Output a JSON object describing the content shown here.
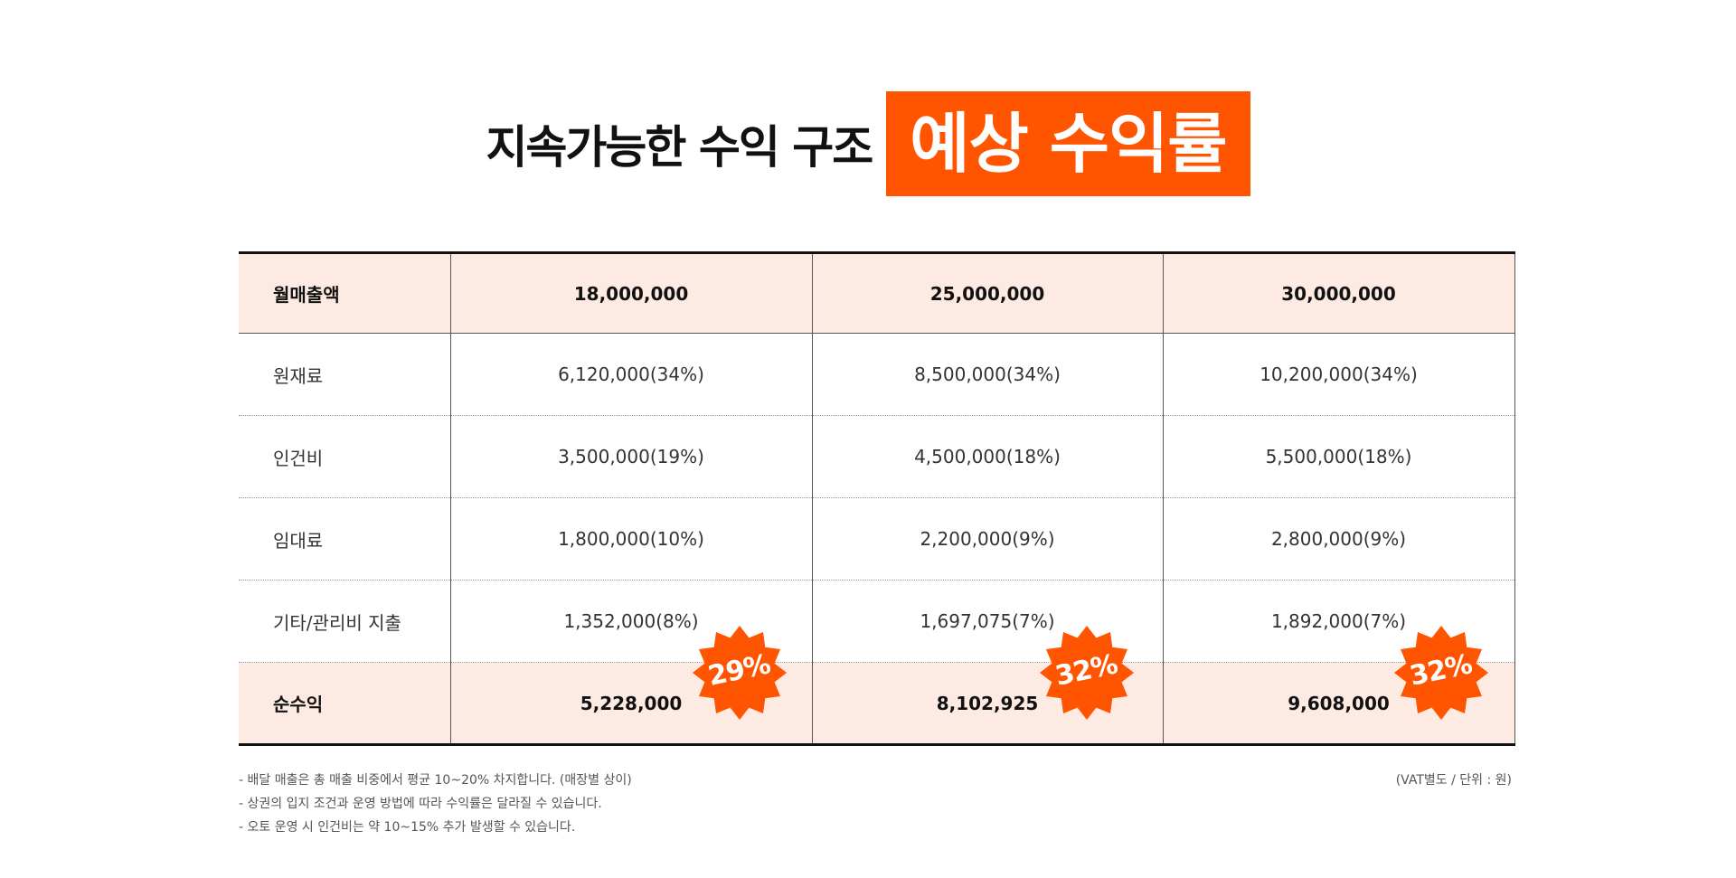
{
  "title": {
    "main": "지속가능한 수익 구조",
    "highlight": "예상 수익률"
  },
  "table": {
    "header": [
      "월매출액",
      "18,000,000",
      "25,000,000",
      "30,000,000"
    ],
    "rows": [
      [
        "원재료",
        "6,120,000(34%)",
        "8,500,000(34%)",
        "10,200,000(34%)"
      ],
      [
        "인건비",
        "3,500,000(19%)",
        "4,500,000(18%)",
        "5,500,000(18%)"
      ],
      [
        "임대료",
        "1,800,000(10%)",
        "2,200,000(9%)",
        "2,800,000(9%)"
      ],
      [
        "기타/관리비 지출",
        "1,352,000(8%)",
        "1,697,075(7%)",
        "1,892,000(7%)"
      ]
    ],
    "total": [
      "순수익",
      "5,228,000",
      "8,102,925",
      "9,608,000"
    ]
  },
  "badges": [
    "29%",
    "32%",
    "32%"
  ],
  "notes": [
    "- 배달 매출은  총 매출 비중에서 평균 10~20% 차지합니다. (매장별 상이)",
    "- 상권의 입지 조건과 운영 방법에 따라 수익률은 달라질 수 있습니다.",
    "- 오토 운영 시 인건비는 약 10~15% 추가 발생할 수 있습니다."
  ],
  "unit_note": "(VAT별도 / 단위 : 원)",
  "colors": {
    "accent": "#ff5500",
    "row_highlight": "#fdebe3"
  },
  "icons": {
    "badge": "starburst-badge-icon"
  }
}
